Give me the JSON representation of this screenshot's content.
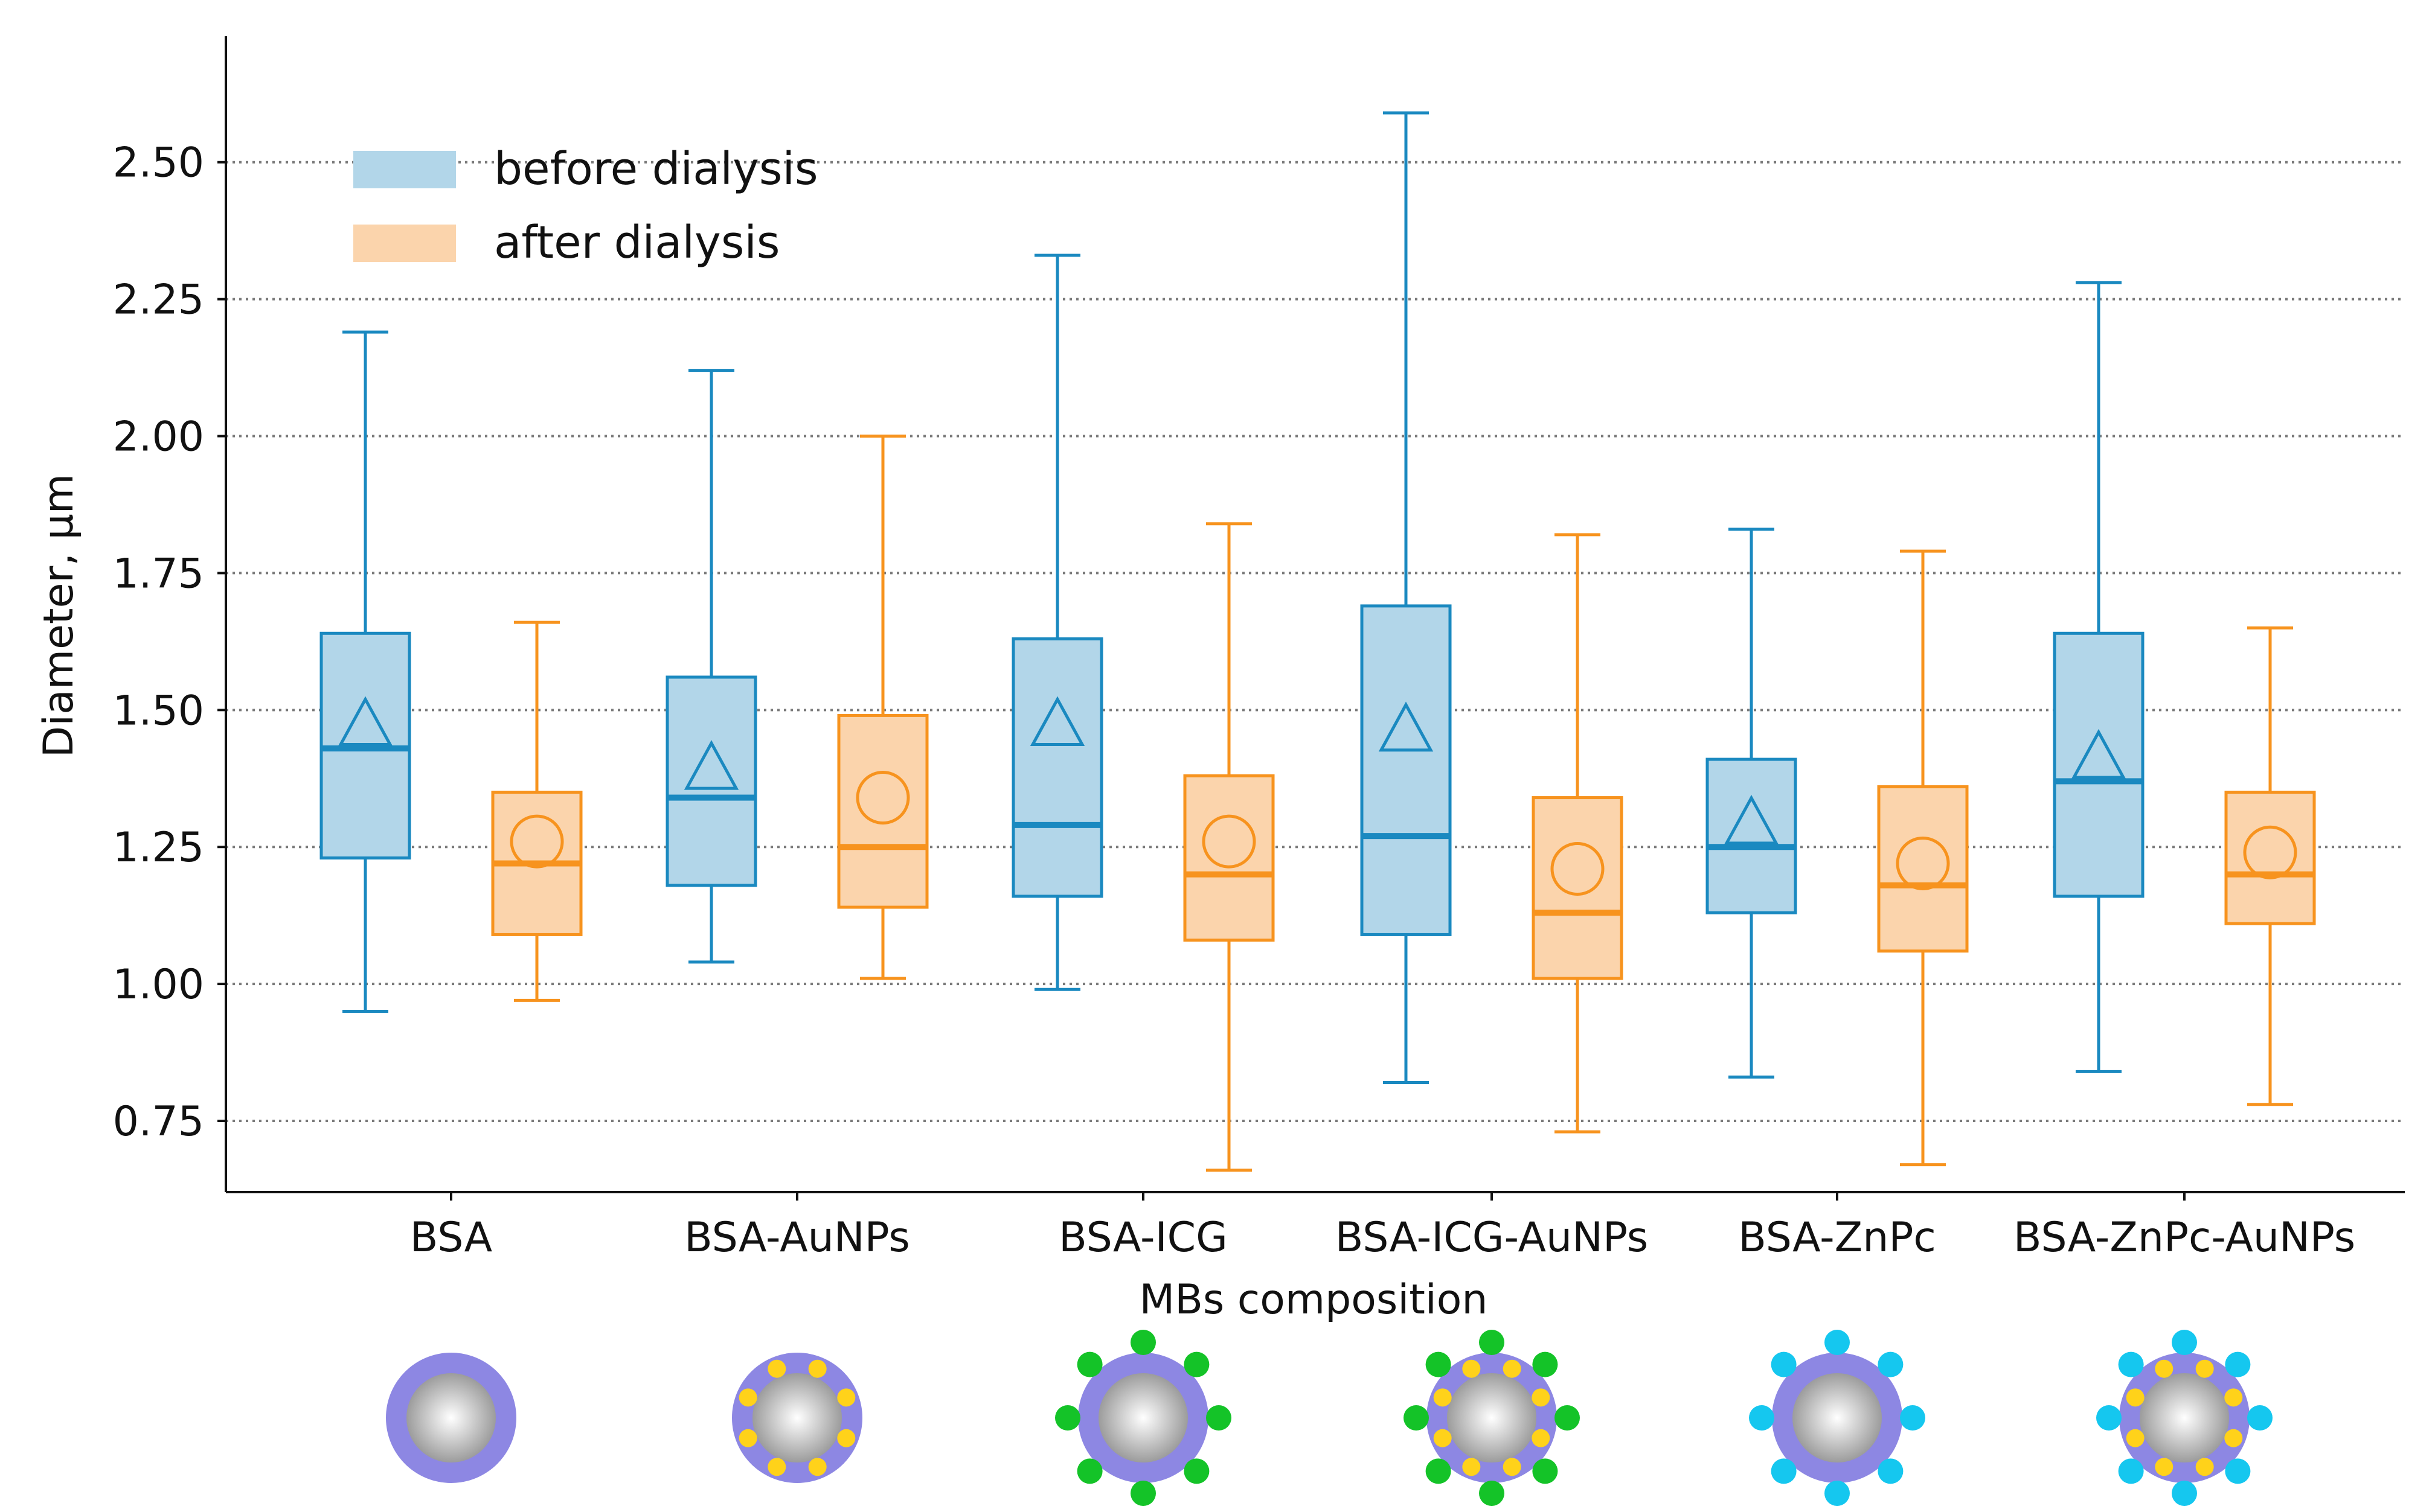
{
  "chart_data": {
    "type": "box",
    "title": "",
    "xlabel": "MBs composition",
    "ylabel": "Diameter, µm",
    "ylim": [
      0.62,
      2.73
    ],
    "yticks": [
      0.75,
      1.0,
      1.25,
      1.5,
      1.75,
      2.0,
      2.25,
      2.5
    ],
    "ytick_labels": [
      "0.75",
      "1.00",
      "1.25",
      "1.50",
      "1.75",
      "2.00",
      "2.25",
      "2.50"
    ],
    "grid": "horizontal dotted",
    "legend_position": "top-left",
    "categories": [
      "BSA",
      "BSA-AuNPs",
      "BSA-ICG",
      "BSA-ICG-AuNPs",
      "BSA-ZnPc",
      "BSA-ZnPc-AuNPs"
    ],
    "series": [
      {
        "name": "before dialysis",
        "color": "#1a89c0",
        "fill": "#b2d6e9",
        "mean_marker": "triangle",
        "boxes": [
          {
            "whislo": 0.95,
            "q1": 1.23,
            "med": 1.43,
            "q3": 1.64,
            "whishi": 2.19,
            "mean": 1.47
          },
          {
            "whislo": 1.04,
            "q1": 1.18,
            "med": 1.34,
            "q3": 1.56,
            "whishi": 2.12,
            "mean": 1.39
          },
          {
            "whislo": 0.99,
            "q1": 1.16,
            "med": 1.29,
            "q3": 1.63,
            "whishi": 2.33,
            "mean": 1.47
          },
          {
            "whislo": 0.82,
            "q1": 1.09,
            "med": 1.27,
            "q3": 1.69,
            "whishi": 2.59,
            "mean": 1.46
          },
          {
            "whislo": 0.83,
            "q1": 1.13,
            "med": 1.25,
            "q3": 1.41,
            "whishi": 1.83,
            "mean": 1.29
          },
          {
            "whislo": 0.84,
            "q1": 1.16,
            "med": 1.37,
            "q3": 1.64,
            "whishi": 2.28,
            "mean": 1.41
          }
        ]
      },
      {
        "name": "after dialysis",
        "color": "#f7931e",
        "fill": "#fbd4ac",
        "mean_marker": "circle",
        "boxes": [
          {
            "whislo": 0.97,
            "q1": 1.09,
            "med": 1.22,
            "q3": 1.35,
            "whishi": 1.66,
            "mean": 1.26
          },
          {
            "whislo": 1.01,
            "q1": 1.14,
            "med": 1.25,
            "q3": 1.49,
            "whishi": 2.0,
            "mean": 1.34
          },
          {
            "whislo": 0.66,
            "q1": 1.08,
            "med": 1.2,
            "q3": 1.38,
            "whishi": 1.84,
            "mean": 1.26
          },
          {
            "whislo": 0.73,
            "q1": 1.01,
            "med": 1.13,
            "q3": 1.34,
            "whishi": 1.82,
            "mean": 1.21
          },
          {
            "whislo": 0.67,
            "q1": 1.06,
            "med": 1.18,
            "q3": 1.36,
            "whishi": 1.79,
            "mean": 1.22
          },
          {
            "whislo": 0.78,
            "q1": 1.11,
            "med": 1.2,
            "q3": 1.35,
            "whishi": 1.65,
            "mean": 1.24
          }
        ]
      }
    ],
    "schematics": [
      {
        "category": "BSA",
        "inner_dots": 0,
        "outer_dots": 0,
        "outer_dot_color": ""
      },
      {
        "category": "BSA-AuNPs",
        "inner_dots": 8,
        "outer_dots": 0,
        "outer_dot_color": ""
      },
      {
        "category": "BSA-ICG",
        "inner_dots": 0,
        "outer_dots": 8,
        "outer_dot_color": "#14c328"
      },
      {
        "category": "BSA-ICG-AuNPs",
        "inner_dots": 8,
        "outer_dots": 8,
        "outer_dot_color": "#14c328"
      },
      {
        "category": "BSA-ZnPc",
        "inner_dots": 0,
        "outer_dots": 8,
        "outer_dot_color": "#15c7ef"
      },
      {
        "category": "BSA-ZnPc-AuNPs",
        "inner_dots": 8,
        "outer_dots": 8,
        "outer_dot_color": "#15c7ef"
      }
    ],
    "schematic_colors": {
      "shell": "#8d87e3",
      "core_light": "#ffffff",
      "core_dark": "#9c9c9c",
      "inner_dot": "#ffd21a"
    }
  }
}
